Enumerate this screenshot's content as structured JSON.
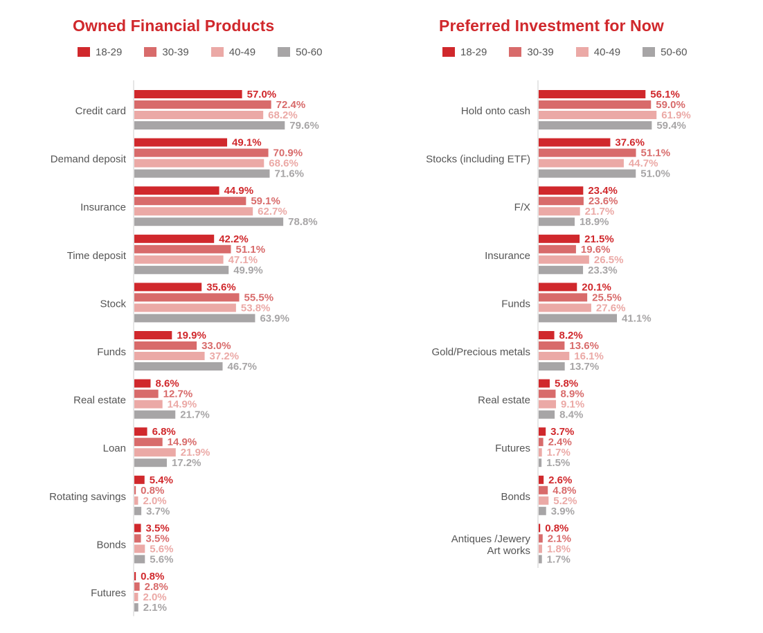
{
  "colors": {
    "title": "#d0282c",
    "series": [
      "#d0282c",
      "#d86b6b",
      "#eba9a6",
      "#a7a5a6"
    ],
    "category_label": "#555555",
    "axis": "#cccccc"
  },
  "chart_data": [
    {
      "type": "bar",
      "orientation": "horizontal",
      "title": "Owned Financial Products",
      "legend_placement": "top",
      "grid": false,
      "xlim": [
        0,
        100
      ],
      "value_suffix": "%",
      "categories": [
        "Credit card",
        "Demand deposit",
        "Insurance",
        "Time deposit",
        "Stock",
        "Funds",
        "Real estate",
        "Loan",
        "Rotating savings",
        "Bonds",
        "Futures"
      ],
      "series": [
        {
          "name": "18-29",
          "values": [
            57.0,
            49.1,
            44.9,
            42.2,
            35.6,
            19.9,
            8.6,
            6.8,
            5.4,
            3.5,
            0.8
          ]
        },
        {
          "name": "30-39",
          "values": [
            72.4,
            70.9,
            59.1,
            51.1,
            55.5,
            33.0,
            12.7,
            14.9,
            0.8,
            3.5,
            2.8
          ]
        },
        {
          "name": "40-49",
          "values": [
            68.2,
            68.6,
            62.7,
            47.1,
            53.8,
            37.2,
            14.9,
            21.9,
            2.0,
            5.6,
            2.0
          ]
        },
        {
          "name": "50-60",
          "values": [
            79.6,
            71.6,
            78.8,
            49.9,
            63.9,
            46.7,
            21.7,
            17.2,
            3.7,
            5.6,
            2.1
          ]
        }
      ]
    },
    {
      "type": "bar",
      "orientation": "horizontal",
      "title": "Preferred Investment for Now",
      "legend_placement": "top",
      "grid": false,
      "xlim": [
        0,
        100
      ],
      "value_suffix": "%",
      "categories": [
        "Hold onto cash",
        "Stocks (including ETF)",
        "F/X",
        "Insurance",
        "Funds",
        "Gold/Precious metals",
        "Real estate",
        "Futures",
        "Bonds",
        "Antiques /Jewery\nArt works"
      ],
      "series": [
        {
          "name": "18-29",
          "values": [
            56.1,
            37.6,
            23.4,
            21.5,
            20.1,
            8.2,
            5.8,
            3.7,
            2.6,
            0.8
          ]
        },
        {
          "name": "30-39",
          "values": [
            59.0,
            51.1,
            23.6,
            19.6,
            25.5,
            13.6,
            8.9,
            2.4,
            4.8,
            2.1
          ]
        },
        {
          "name": "40-49",
          "values": [
            61.9,
            44.7,
            21.7,
            26.5,
            27.6,
            16.1,
            9.1,
            1.7,
            5.2,
            1.8
          ]
        },
        {
          "name": "50-60",
          "values": [
            59.4,
            51.0,
            18.9,
            23.3,
            41.1,
            13.7,
            8.4,
            1.5,
            3.9,
            1.7
          ]
        }
      ]
    }
  ]
}
